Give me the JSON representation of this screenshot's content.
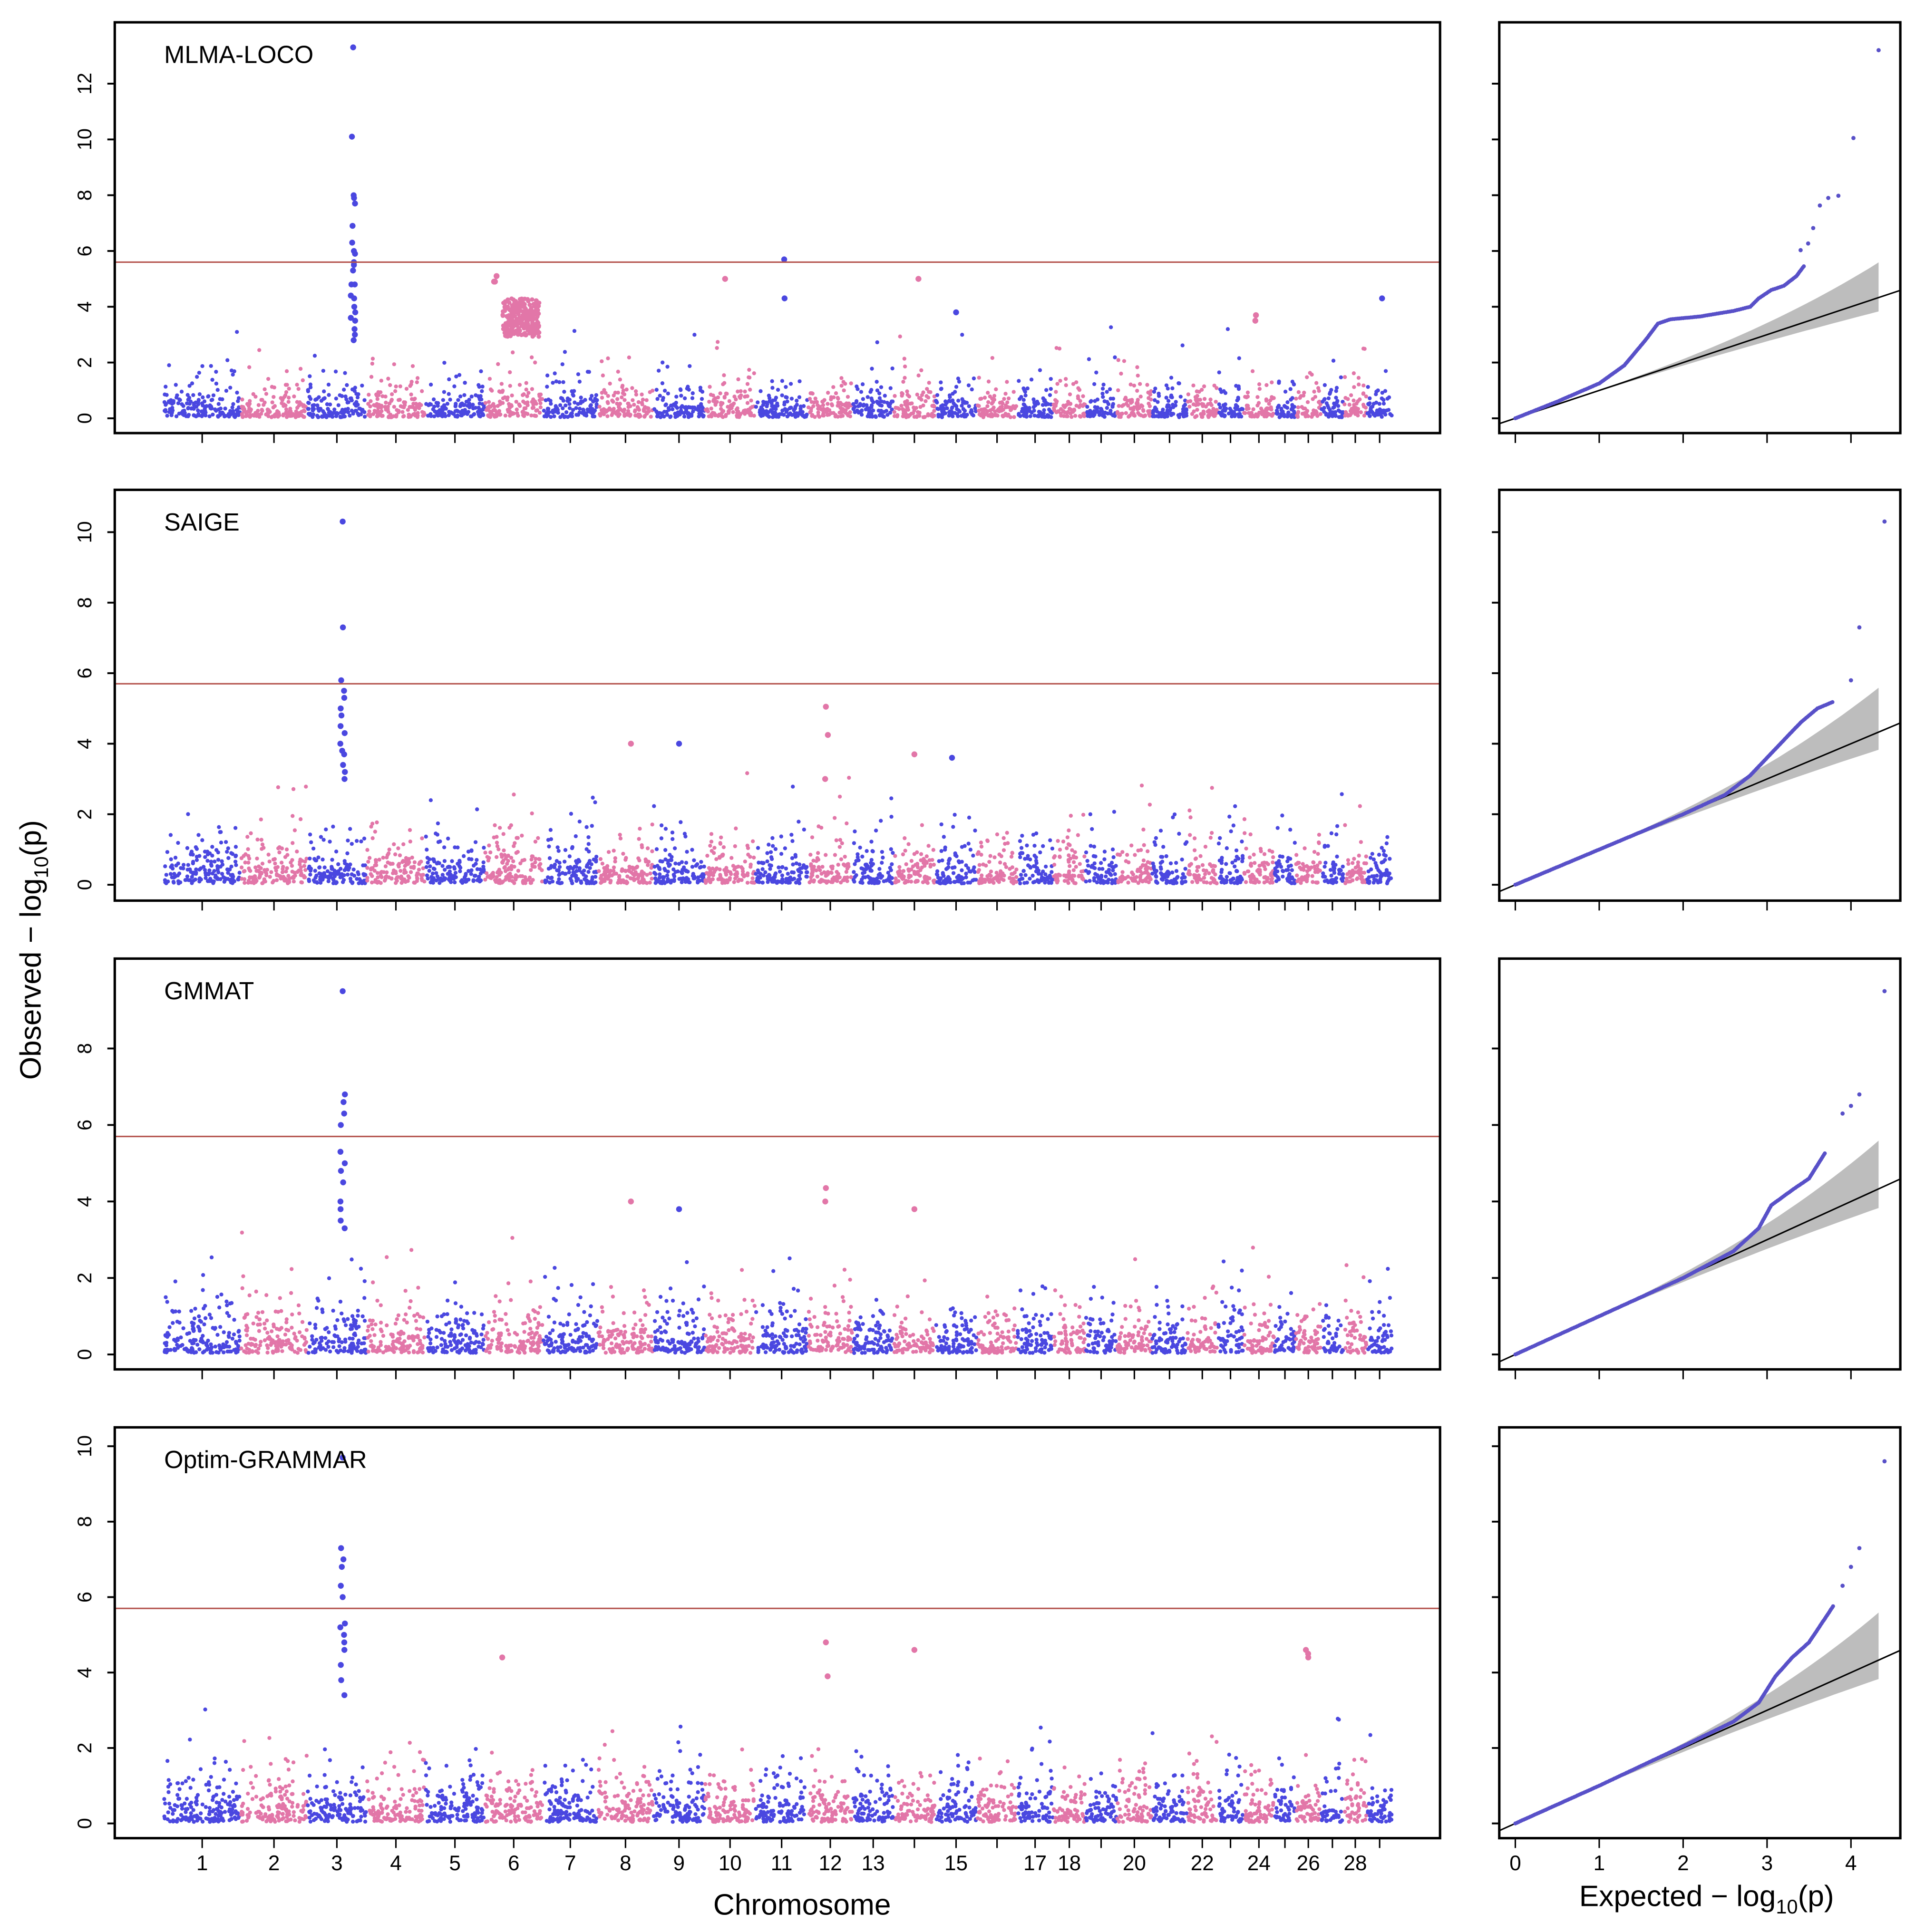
{
  "chart_data": {
    "type": "scatter",
    "description_kind": "manhattan-and-qq",
    "x_title": "Chromosome",
    "y_title": {
      "prefix": "Observed  − log",
      "sub": "10",
      "suffix": "(p)"
    },
    "qq_x_title": {
      "prefix": "Expected − log",
      "sub": "10",
      "suffix": "(p)"
    },
    "colors": {
      "odd_chromosome": "#4a47e0",
      "even_chromosome": "#e276a8",
      "threshold_line": "#b5554f",
      "qq_points": "#5850c8",
      "qq_band": "#bdbdbd",
      "qq_line": "#000000"
    },
    "chromosomes": [
      {
        "id": 1,
        "label": "1",
        "size": 158
      },
      {
        "id": 2,
        "label": "2",
        "size": 136
      },
      {
        "id": 3,
        "label": "3",
        "size": 121
      },
      {
        "id": 4,
        "label": "4",
        "size": 120
      },
      {
        "id": 5,
        "label": "5",
        "size": 121
      },
      {
        "id": 6,
        "label": "6",
        "size": 119
      },
      {
        "id": 7,
        "label": "7",
        "size": 112
      },
      {
        "id": 8,
        "label": "8",
        "size": 113
      },
      {
        "id": 9,
        "label": "9",
        "size": 105
      },
      {
        "id": 10,
        "label": "10",
        "size": 103
      },
      {
        "id": 11,
        "label": "11",
        "size": 107
      },
      {
        "id": 12,
        "label": "12",
        "size": 91
      },
      {
        "id": 13,
        "label": "13",
        "size": 83
      },
      {
        "id": 14,
        "label": "",
        "size": 84
      },
      {
        "id": 15,
        "label": "15",
        "size": 85
      },
      {
        "id": 16,
        "label": "",
        "size": 81
      },
      {
        "id": 17,
        "label": "17",
        "size": 73
      },
      {
        "id": 18,
        "label": "18",
        "size": 65
      },
      {
        "id": 19,
        "label": "",
        "size": 63
      },
      {
        "id": 20,
        "label": "20",
        "size": 71
      },
      {
        "id": 21,
        "label": "",
        "size": 71
      },
      {
        "id": 22,
        "label": "22",
        "size": 61
      },
      {
        "id": 23,
        "label": "",
        "size": 52
      },
      {
        "id": 24,
        "label": "24",
        "size": 62
      },
      {
        "id": 25,
        "label": "",
        "size": 42
      },
      {
        "id": 26,
        "label": "26",
        "size": 51
      },
      {
        "id": 27,
        "label": "",
        "size": 45
      },
      {
        "id": 28,
        "label": "28",
        "size": 46
      },
      {
        "id": 29,
        "label": "",
        "size": 51
      }
    ],
    "qq_xticks": [
      "0",
      "1",
      "2",
      "3",
      "4"
    ],
    "panels": [
      {
        "label": "MLMA-LOCO",
        "ylim": [
          -0.53,
          14.2
        ],
        "yticks": [
          "0",
          "2",
          "4",
          "6",
          "8",
          "10",
          "12"
        ],
        "threshold": 5.6,
        "peaks": [
          {
            "chr": 3,
            "pos": 0.78,
            "values": [
              13.3,
              10.1,
              8.0,
              7.9,
              7.7,
              6.9,
              6.3,
              6.0,
              5.9,
              5.6,
              5.5,
              5.3,
              4.8,
              4.8,
              4.4,
              4.3,
              4.0,
              3.8,
              3.6,
              3.5,
              3.2,
              3.0,
              2.8
            ]
          },
          {
            "chr": 6,
            "pos": 0.2,
            "values": [
              5.1,
              4.9,
              4.9
            ]
          },
          {
            "chr": 10,
            "pos": 0.4,
            "values": [
              5.0
            ]
          },
          {
            "chr": 11,
            "pos": 0.55,
            "values": [
              5.7,
              4.3
            ]
          },
          {
            "chr": 14,
            "pos": 0.6,
            "values": [
              5.0
            ]
          },
          {
            "chr": 15,
            "pos": 0.5,
            "values": [
              3.8
            ]
          },
          {
            "chr": 24,
            "pos": 0.4,
            "values": [
              3.7,
              3.5
            ]
          },
          {
            "chr": 29,
            "pos": 0.6,
            "values": [
              4.3
            ]
          }
        ],
        "clusters": [
          {
            "chr": 6,
            "from": 0.3,
            "to": 0.95,
            "min": 2.9,
            "max": 4.3,
            "count": 260
          }
        ],
        "qq_curve": [
          [
            0,
            0
          ],
          [
            0.5,
            0.6
          ],
          [
            1,
            1.25
          ],
          [
            1.3,
            1.9
          ],
          [
            1.55,
            2.8
          ],
          [
            1.7,
            3.4
          ],
          [
            1.85,
            3.55
          ],
          [
            2.2,
            3.65
          ],
          [
            2.6,
            3.85
          ],
          [
            2.8,
            4.0
          ],
          [
            2.9,
            4.3
          ],
          [
            3.05,
            4.6
          ],
          [
            3.2,
            4.75
          ],
          [
            3.35,
            5.1
          ],
          [
            3.45,
            5.5
          ]
        ],
        "qq_top": [
          [
            3.4,
            6.03
          ],
          [
            3.49,
            6.27
          ],
          [
            3.55,
            6.82
          ],
          [
            3.63,
            7.63
          ],
          [
            3.73,
            7.9
          ],
          [
            3.85,
            7.98
          ],
          [
            4.03,
            10.05
          ],
          [
            4.33,
            13.2
          ]
        ]
      },
      {
        "label": "SAIGE",
        "ylim": [
          -0.45,
          11.2
        ],
        "yticks": [
          "0",
          "2",
          "4",
          "6",
          "8",
          "10"
        ],
        "threshold": 5.7,
        "peaks": [
          {
            "chr": 3,
            "pos": 0.6,
            "values": [
              10.3,
              7.3,
              5.8,
              5.5,
              5.3,
              5.0,
              4.8,
              4.5,
              4.3,
              4.0,
              3.8,
              3.7,
              3.4,
              3.2,
              3.0
            ]
          },
          {
            "chr": 12,
            "pos": 0.4,
            "values": [
              5.05,
              4.25,
              3.0
            ]
          },
          {
            "chr": 8,
            "pos": 0.6,
            "values": [
              4.0
            ]
          },
          {
            "chr": 9,
            "pos": 0.5,
            "values": [
              4.0
            ]
          },
          {
            "chr": 14,
            "pos": 0.5,
            "values": [
              3.7
            ]
          },
          {
            "chr": 15,
            "pos": 0.4,
            "values": [
              3.6
            ]
          }
        ],
        "clusters": [],
        "qq_curve": [
          [
            0,
            0
          ],
          [
            1,
            1
          ],
          [
            2,
            2
          ],
          [
            2.5,
            2.55
          ],
          [
            2.8,
            3.1
          ],
          [
            3.0,
            3.6
          ],
          [
            3.2,
            4.1
          ],
          [
            3.4,
            4.6
          ],
          [
            3.6,
            5.0
          ],
          [
            3.8,
            5.2
          ]
        ],
        "qq_top": [
          [
            4.0,
            5.8
          ],
          [
            4.1,
            7.3
          ],
          [
            4.4,
            10.3
          ]
        ]
      },
      {
        "label": "GMMAT",
        "ylim": [
          -0.39,
          10.35
        ],
        "yticks": [
          "0",
          "2",
          "4",
          "6",
          "8"
        ],
        "threshold": 5.7,
        "peaks": [
          {
            "chr": 3,
            "pos": 0.6,
            "values": [
              9.5,
              6.8,
              6.6,
              6.3,
              6.0,
              5.3,
              5.0,
              4.8,
              4.5,
              4.0,
              3.8,
              3.5,
              3.3
            ]
          },
          {
            "chr": 12,
            "pos": 0.4,
            "values": [
              4.35,
              4.0
            ]
          },
          {
            "chr": 8,
            "pos": 0.6,
            "values": [
              4.0
            ]
          },
          {
            "chr": 9,
            "pos": 0.5,
            "values": [
              3.8
            ]
          },
          {
            "chr": 14,
            "pos": 0.5,
            "values": [
              3.8
            ]
          }
        ],
        "clusters": [],
        "qq_curve": [
          [
            0,
            0
          ],
          [
            1,
            1
          ],
          [
            2,
            2
          ],
          [
            2.6,
            2.7
          ],
          [
            2.9,
            3.3
          ],
          [
            3.05,
            3.9
          ],
          [
            3.3,
            4.3
          ],
          [
            3.5,
            4.6
          ],
          [
            3.7,
            5.3
          ]
        ],
        "qq_top": [
          [
            3.9,
            6.3
          ],
          [
            4.0,
            6.5
          ],
          [
            4.1,
            6.8
          ],
          [
            4.4,
            9.5
          ]
        ]
      },
      {
        "label": "Optim-GRAMMAR",
        "ylim": [
          -0.39,
          10.5
        ],
        "yticks": [
          "0",
          "2",
          "4",
          "6",
          "8",
          "10"
        ],
        "threshold": 5.7,
        "peaks": [
          {
            "chr": 3,
            "pos": 0.6,
            "values": [
              9.7,
              7.3,
              7.0,
              6.8,
              6.3,
              6.0,
              5.3,
              5.2,
              5.0,
              4.8,
              4.6,
              4.2,
              3.8,
              3.4
            ]
          },
          {
            "chr": 12,
            "pos": 0.4,
            "values": [
              4.8,
              3.9
            ]
          },
          {
            "chr": 14,
            "pos": 0.5,
            "values": [
              4.6
            ]
          },
          {
            "chr": 26,
            "pos": 0.4,
            "values": [
              4.6,
              4.5,
              4.4
            ]
          },
          {
            "chr": 6,
            "pos": 0.3,
            "values": [
              4.4
            ]
          }
        ],
        "clusters": [],
        "qq_curve": [
          [
            0,
            0
          ],
          [
            1,
            1
          ],
          [
            2,
            2.05
          ],
          [
            2.6,
            2.7
          ],
          [
            2.9,
            3.2
          ],
          [
            3.1,
            3.9
          ],
          [
            3.3,
            4.4
          ],
          [
            3.5,
            4.8
          ],
          [
            3.65,
            5.3
          ],
          [
            3.8,
            5.8
          ]
        ],
        "qq_top": [
          [
            3.9,
            6.3
          ],
          [
            4.0,
            6.8
          ],
          [
            4.1,
            7.3
          ],
          [
            4.4,
            9.6
          ]
        ]
      }
    ]
  }
}
